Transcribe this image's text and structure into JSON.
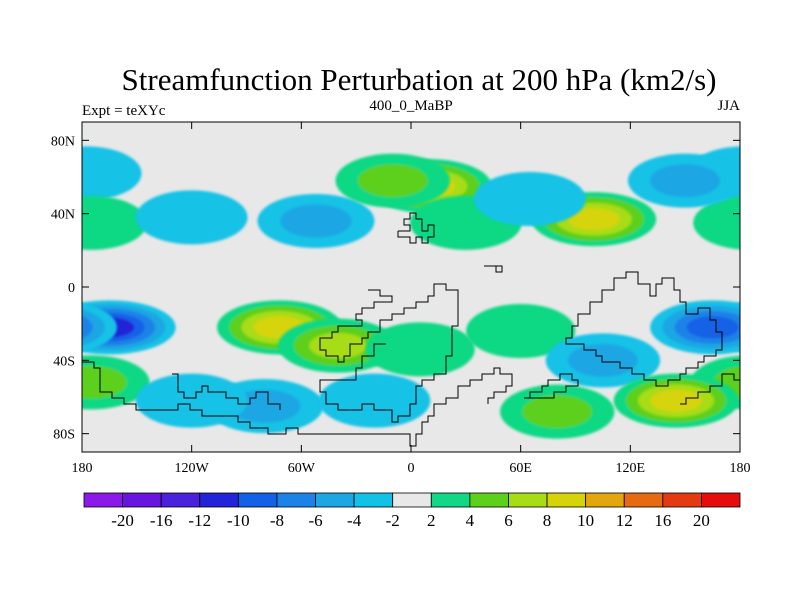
{
  "chart_data": {
    "type": "heatmap",
    "title": "Streamfunction Perturbation at 200 hPa (km2/s)",
    "left_string": "Expt = teXYc",
    "center_string": "400_0_MaBP",
    "right_string": "JJA",
    "x_ticks": [
      "180",
      "120W",
      "60W",
      "0",
      "60E",
      "120E",
      "180"
    ],
    "y_ticks": [
      "80N",
      "40N",
      "0",
      "40S",
      "80S"
    ],
    "xlim": [
      -180,
      180
    ],
    "ylim": [
      -90,
      90
    ],
    "colorbar": {
      "levels": [
        -20,
        -16,
        -12,
        -10,
        -8,
        -6,
        -4,
        -2,
        2,
        4,
        6,
        8,
        10,
        12,
        16,
        20
      ],
      "labels": [
        "-20",
        "-16",
        "-12",
        "-10",
        "-8",
        "-6",
        "-4",
        "-2",
        "2",
        "4",
        "6",
        "8",
        "10",
        "12",
        "16",
        "20"
      ],
      "colors": [
        "#8b1ae8",
        "#6a14e0",
        "#4a22dc",
        "#2323d8",
        "#1262e6",
        "#1c82e8",
        "#1ca6e4",
        "#12c2e6",
        "#e8e8e8",
        "#10d884",
        "#5cd01a",
        "#a8dc16",
        "#d6d408",
        "#e4a60e",
        "#e66a10",
        "#e43a10",
        "#e60c0c"
      ]
    },
    "anomaly_centers": [
      {
        "lon": -165,
        "lat": -22,
        "value": -11
      },
      {
        "lon": -178,
        "lat": 62,
        "value": -3
      },
      {
        "lon": -175,
        "lat": 35,
        "value": 3
      },
      {
        "lon": -175,
        "lat": -52,
        "value": 5
      },
      {
        "lon": -52,
        "lat": 36,
        "value": -5
      },
      {
        "lon": -120,
        "lat": 38,
        "value": -3
      },
      {
        "lon": 10,
        "lat": 55,
        "value": 8
      },
      {
        "lon": -10,
        "lat": 58,
        "value": 4
      },
      {
        "lon": 30,
        "lat": 35,
        "value": 3
      },
      {
        "lon": 100,
        "lat": 37,
        "value": 8
      },
      {
        "lon": 65,
        "lat": 48,
        "value": -3
      },
      {
        "lon": 150,
        "lat": 58,
        "value": -4
      },
      {
        "lon": -72,
        "lat": -22,
        "value": 8
      },
      {
        "lon": -40,
        "lat": -32,
        "value": 6
      },
      {
        "lon": 60,
        "lat": -24,
        "value": 2
      },
      {
        "lon": 5,
        "lat": -34,
        "value": 2
      },
      {
        "lon": -80,
        "lat": -65,
        "value": -5
      },
      {
        "lon": -20,
        "lat": -62,
        "value": -3
      },
      {
        "lon": -120,
        "lat": -62,
        "value": -3
      },
      {
        "lon": 105,
        "lat": -40,
        "value": -4
      },
      {
        "lon": 165,
        "lat": -22,
        "value": -8
      },
      {
        "lon": 145,
        "lat": -62,
        "value": 8
      },
      {
        "lon": 80,
        "lat": -68,
        "value": 4
      }
    ]
  }
}
